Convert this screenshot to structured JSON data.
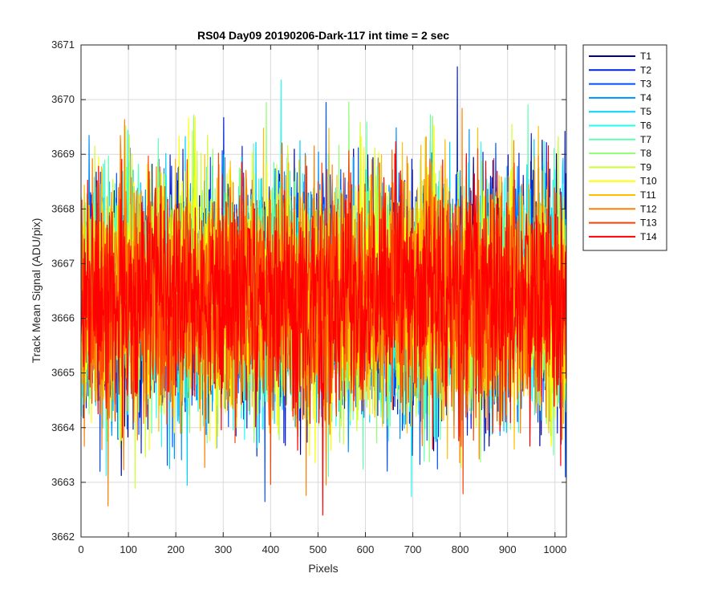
{
  "chart_data": {
    "type": "line",
    "title": "RS04 Day09 20190206-Dark-117 int time = 2 sec",
    "xlabel": "Pixels",
    "ylabel": "Track Mean Signal (ADU/pix)",
    "xlim": [
      0,
      1024
    ],
    "ylim": [
      3662,
      3671
    ],
    "xticks": [
      0,
      100,
      200,
      300,
      400,
      500,
      600,
      700,
      800,
      900,
      1000
    ],
    "yticks": [
      3662,
      3663,
      3664,
      3665,
      3666,
      3667,
      3668,
      3669,
      3670,
      3671
    ],
    "grid": true,
    "legend_position": "outside-top-right",
    "noise_model": {
      "mean": 3666.4,
      "std": 1.05,
      "n_points_per_series": 1024
    },
    "series": [
      {
        "name": "T1",
        "color": "#00008F"
      },
      {
        "name": "T2",
        "color": "#0020DF"
      },
      {
        "name": "T3",
        "color": "#0050FF"
      },
      {
        "name": "T4",
        "color": "#0090FF"
      },
      {
        "name": "T5",
        "color": "#00CFFF"
      },
      {
        "name": "T6",
        "color": "#20FFEF"
      },
      {
        "name": "T7",
        "color": "#60FFAF"
      },
      {
        "name": "T8",
        "color": "#8FFF70"
      },
      {
        "name": "T9",
        "color": "#CFFF30"
      },
      {
        "name": "T10",
        "color": "#FFFF00"
      },
      {
        "name": "T11",
        "color": "#FFBF00"
      },
      {
        "name": "T12",
        "color": "#FF8000"
      },
      {
        "name": "T13",
        "color": "#FF4000"
      },
      {
        "name": "T14",
        "color": "#FF0000"
      }
    ]
  }
}
